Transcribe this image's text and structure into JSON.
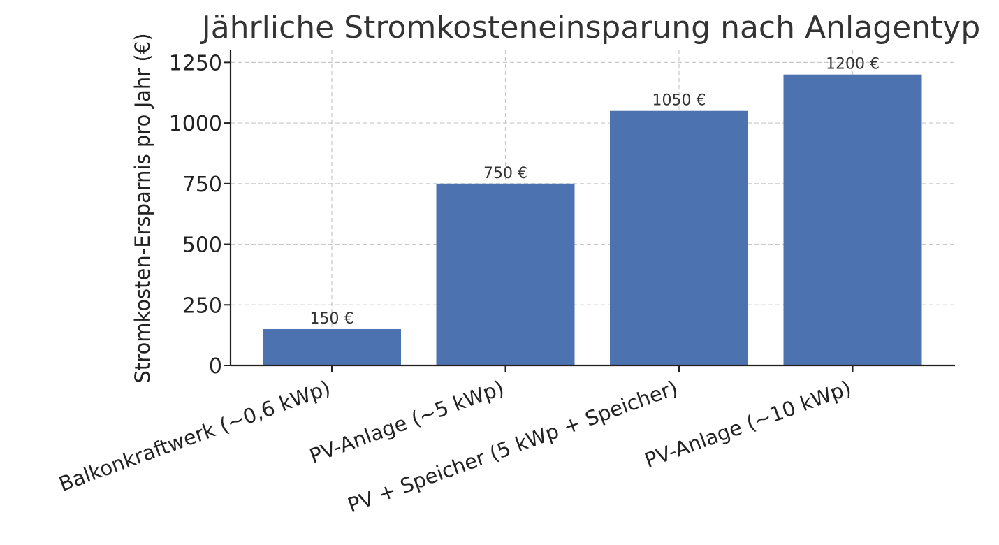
{
  "chart_data": {
    "type": "bar",
    "title": "Jährliche Stromkosteneinsparung nach Anlagentyp",
    "xlabel": "",
    "ylabel": "Stromkosten-Ersparnis pro Jahr (€)",
    "categories": [
      "Balkonkraftwerk (~0,6 kWp)",
      "PV-Anlage (~5 kWp)",
      "PV + Speicher (5 kWp + Speicher)",
      "PV-Anlage (~10 kWp)"
    ],
    "values": [
      150,
      750,
      1050,
      1200
    ],
    "value_labels": [
      "150 €",
      "750 €",
      "1050 €",
      "1200 €"
    ],
    "yticks": [
      0,
      250,
      500,
      750,
      1000,
      1250
    ],
    "ylim": [
      0,
      1300
    ],
    "grid": true,
    "bar_color": "#4c72b0"
  }
}
